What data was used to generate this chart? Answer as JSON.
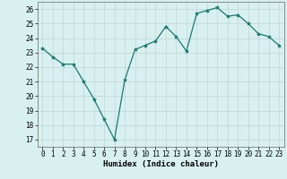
{
  "x": [
    0,
    1,
    2,
    3,
    4,
    5,
    6,
    7,
    8,
    9,
    10,
    11,
    12,
    13,
    14,
    15,
    16,
    17,
    18,
    19,
    20,
    21,
    22,
    23
  ],
  "y": [
    23.3,
    22.7,
    22.2,
    22.2,
    21.0,
    19.8,
    18.4,
    17.0,
    21.1,
    23.2,
    23.5,
    23.8,
    24.8,
    24.1,
    23.1,
    25.7,
    25.9,
    26.1,
    25.5,
    25.6,
    25.0,
    24.3,
    24.1,
    23.5
  ],
  "line_color": "#1a7a6e",
  "marker": "*",
  "marker_size": 3,
  "bg_color": "#d9f0f0",
  "grid_color": "#c4dada",
  "xlabel": "Humidex (Indice chaleur)",
  "xlim": [
    -0.5,
    23.5
  ],
  "ylim": [
    16.5,
    26.5
  ],
  "yticks": [
    17,
    18,
    19,
    20,
    21,
    22,
    23,
    24,
    25,
    26
  ],
  "xticks": [
    0,
    1,
    2,
    3,
    4,
    5,
    6,
    7,
    8,
    9,
    10,
    11,
    12,
    13,
    14,
    15,
    16,
    17,
    18,
    19,
    20,
    21,
    22,
    23
  ],
  "tick_fontsize": 5.5,
  "xlabel_fontsize": 6.5
}
